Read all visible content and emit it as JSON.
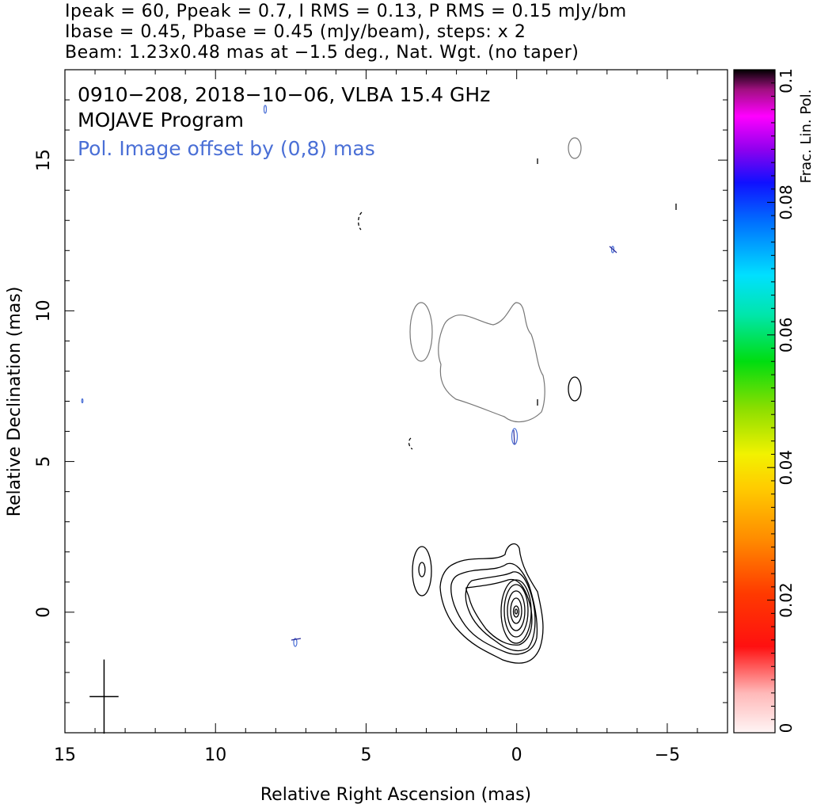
{
  "header": {
    "line1": "Ipeak = 60, Ppeak = 0.7, I RMS = 0.13, P RMS = 0.15 mJy/bm",
    "line2": "Ibase = 0.45, Pbase = 0.45 (mJy/beam), steps: x 2",
    "line3": "Beam: 1.23x0.48 mas at −1.5 deg., Nat. Wgt. (no taper)"
  },
  "chart_data": {
    "type": "contour",
    "title": "0910−208, 2018−10−06, VLBA 15.4 GHz",
    "subtitle": "MOJAVE Program",
    "annotation": "Pol. Image offset by (0,8) mas",
    "xlabel": "Relative Right Ascension (mas)",
    "ylabel": "Relative Declination (mas)",
    "xlim": [
      15,
      -7
    ],
    "ylim": [
      -4,
      18
    ],
    "x_ticks": [
      15,
      10,
      5,
      0,
      -5
    ],
    "x_tick_labels": [
      "15",
      "10",
      "5",
      "0",
      "−5"
    ],
    "y_ticks": [
      0,
      5,
      10,
      15
    ],
    "y_tick_labels": [
      "0",
      "5",
      "10",
      "15"
    ],
    "stokes_i_peak_mjy_per_beam": 60,
    "polarized_peak_mjy_per_beam": 0.7,
    "i_rms_mjy_per_beam": 0.13,
    "p_rms_mjy_per_beam": 0.15,
    "i_base_mjy_per_beam": 0.45,
    "p_base_mjy_per_beam": 0.45,
    "contour_step_factor": 2,
    "core_position": [
      0,
      0
    ],
    "beam": {
      "major_mas": 1.23,
      "minor_mas": 0.48,
      "pa_deg": -1.5,
      "weighting": "Nat. Wgt.",
      "taper": "no taper",
      "center_mas": [
        13.7,
        -2.8
      ]
    },
    "colorbar": {
      "label": "Frac. Lin. Pol.",
      "range": [
        0,
        0.1
      ],
      "tick_labels": [
        "0",
        "0.02",
        "0.04",
        "0.06",
        "0.08",
        "0.1"
      ]
    },
    "colors": {
      "stokes_i": "#000000",
      "polarization": "#4a6fd6",
      "pol_contour": "#777777"
    }
  }
}
